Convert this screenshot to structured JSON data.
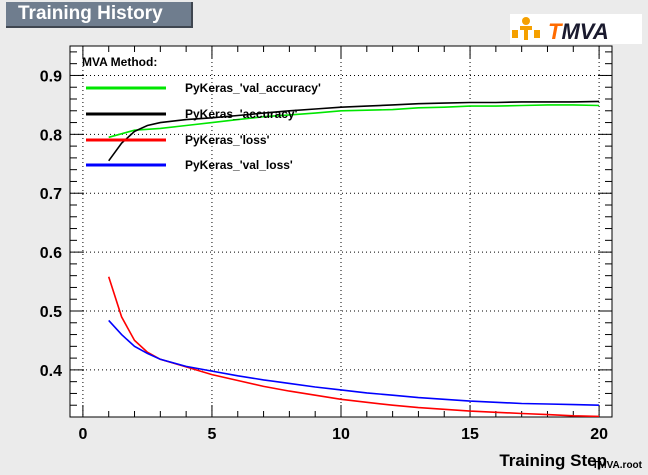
{
  "header": {
    "title": "Training History"
  },
  "logo": {
    "text": "TMVA",
    "highlight_color": "#ff6b00",
    "accent_color": "#f5a000"
  },
  "footer": {
    "filename": "TMVA.root"
  },
  "legend": {
    "header": "MVA Method:"
  },
  "chart_data": {
    "type": "line",
    "title": "Training History",
    "xlabel": "Training Step",
    "ylabel": "",
    "xlim": [
      -0.5,
      20.5
    ],
    "ylim": [
      0.32,
      0.95
    ],
    "xticks": [
      0,
      5,
      10,
      15,
      20
    ],
    "yticks": [
      0.4,
      0.5,
      0.6,
      0.7,
      0.8,
      0.9
    ],
    "grid": true,
    "legend_position": "top-left",
    "series": [
      {
        "name": "PyKeras_'val_accuracy'",
        "color": "#00e600",
        "x": [
          1,
          2,
          3,
          4,
          5,
          6,
          7,
          8,
          9,
          10,
          11,
          12,
          13,
          14,
          15,
          16,
          17,
          18,
          19,
          20
        ],
        "y": [
          0.795,
          0.807,
          0.81,
          0.815,
          0.82,
          0.825,
          0.83,
          0.833,
          0.836,
          0.84,
          0.841,
          0.842,
          0.845,
          0.846,
          0.848,
          0.848,
          0.849,
          0.85,
          0.85,
          0.849
        ]
      },
      {
        "name": "PyKeras_'accuracy'",
        "color": "#000000",
        "x": [
          1,
          1.5,
          2,
          2.5,
          3,
          4,
          5,
          6,
          7,
          8,
          9,
          10,
          11,
          12,
          13,
          14,
          15,
          16,
          17,
          18,
          19,
          20
        ],
        "y": [
          0.755,
          0.785,
          0.805,
          0.815,
          0.82,
          0.825,
          0.828,
          0.832,
          0.836,
          0.84,
          0.843,
          0.846,
          0.848,
          0.85,
          0.852,
          0.853,
          0.854,
          0.854,
          0.855,
          0.855,
          0.855,
          0.856
        ]
      },
      {
        "name": "PyKeras_'loss'",
        "color": "#ff0000",
        "x": [
          1,
          1.5,
          2,
          2.5,
          3,
          4,
          5,
          6,
          7,
          8,
          9,
          10,
          11,
          12,
          13,
          14,
          15,
          16,
          17,
          18,
          19,
          20
        ],
        "y": [
          0.558,
          0.49,
          0.45,
          0.43,
          0.418,
          0.405,
          0.392,
          0.382,
          0.372,
          0.364,
          0.357,
          0.35,
          0.345,
          0.34,
          0.336,
          0.333,
          0.33,
          0.328,
          0.326,
          0.324,
          0.322,
          0.321
        ]
      },
      {
        "name": "PyKeras_'val_loss'",
        "color": "#0000ff",
        "x": [
          1,
          1.5,
          2,
          2.5,
          3,
          4,
          5,
          6,
          7,
          8,
          9,
          10,
          11,
          12,
          13,
          14,
          15,
          16,
          17,
          18,
          19,
          20
        ],
        "y": [
          0.484,
          0.46,
          0.44,
          0.428,
          0.418,
          0.406,
          0.398,
          0.39,
          0.383,
          0.377,
          0.371,
          0.366,
          0.361,
          0.357,
          0.353,
          0.35,
          0.347,
          0.345,
          0.343,
          0.342,
          0.341,
          0.34
        ]
      }
    ]
  }
}
